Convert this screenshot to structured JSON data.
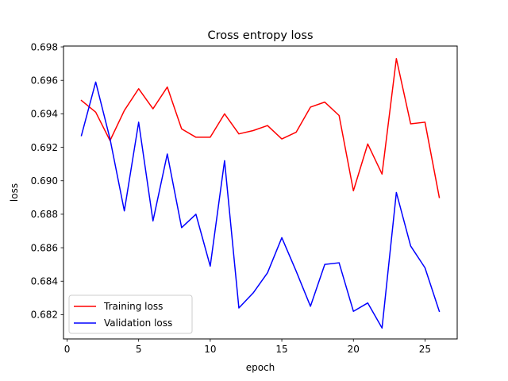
{
  "chart_data": {
    "type": "line",
    "title": "Cross entropy loss",
    "xlabel": "epoch",
    "ylabel": "loss",
    "xlim": [
      -0.25,
      27.25
    ],
    "ylim": [
      0.68055,
      0.69805
    ],
    "xticks": [
      0,
      5,
      10,
      15,
      20,
      25
    ],
    "xtick_labels": [
      "0",
      "5",
      "10",
      "15",
      "20",
      "25"
    ],
    "yticks": [
      0.682,
      0.684,
      0.686,
      0.688,
      0.69,
      0.692,
      0.694,
      0.696,
      0.698
    ],
    "ytick_labels": [
      "0.682",
      "0.684",
      "0.686",
      "0.688",
      "0.690",
      "0.692",
      "0.694",
      "0.696",
      "0.698"
    ],
    "grid": false,
    "legend_position": "lower-left",
    "x": [
      1,
      2,
      3,
      4,
      5,
      6,
      7,
      8,
      9,
      10,
      11,
      12,
      13,
      14,
      15,
      16,
      17,
      18,
      19,
      20,
      21,
      22,
      23,
      24,
      25,
      26
    ],
    "series": [
      {
        "name": "Training loss",
        "color": "#ff0000",
        "values": [
          0.6948,
          0.6941,
          0.6924,
          0.6942,
          0.6955,
          0.6943,
          0.6956,
          0.6931,
          0.6926,
          0.6926,
          0.694,
          0.6928,
          0.693,
          0.6933,
          0.6925,
          0.6929,
          0.6944,
          0.6947,
          0.6939,
          0.6894,
          0.6922,
          0.6904,
          0.6973,
          0.6934,
          0.6935,
          0.689
        ]
      },
      {
        "name": "Validation loss",
        "color": "#0000ff",
        "values": [
          0.6927,
          0.6959,
          0.6925,
          0.6882,
          0.6935,
          0.6876,
          0.6916,
          0.6872,
          0.688,
          0.6849,
          0.6912,
          0.6824,
          0.6833,
          0.6845,
          0.6866,
          0.6846,
          0.6825,
          0.685,
          0.6851,
          0.6822,
          0.6827,
          0.6812,
          0.6893,
          0.6861,
          0.6848,
          0.6822
        ]
      }
    ]
  }
}
